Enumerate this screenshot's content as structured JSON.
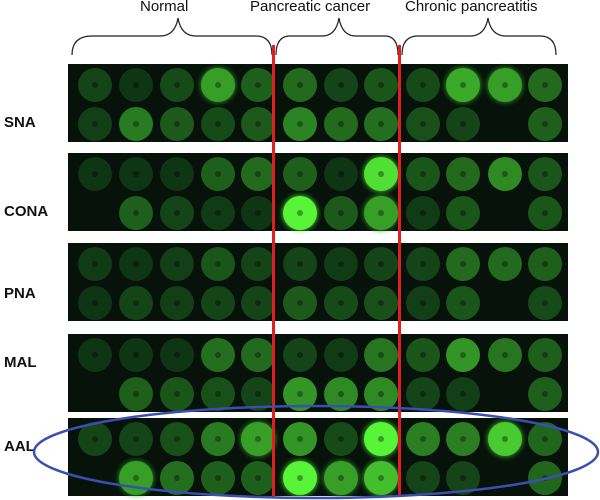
{
  "groups": [
    {
      "label": "Normal"
    },
    {
      "label": "Pancreatic cancer"
    },
    {
      "label": "Chronic pancreatitis"
    }
  ],
  "panels": [
    {
      "label": "SNA",
      "rows": [
        [
          0.12,
          0.05,
          0.15,
          0.55,
          0.25,
          0.3,
          0.12,
          0.2,
          0.15,
          0.6,
          0.55,
          0.3
        ],
        [
          0.1,
          0.38,
          0.22,
          0.15,
          0.22,
          0.42,
          0.3,
          0.32,
          0.18,
          0.12,
          0,
          0.25
        ]
      ]
    },
    {
      "label": "CONA",
      "rows": [
        [
          0.05,
          0.05,
          0.05,
          0.25,
          0.3,
          0.25,
          0.05,
          0.85,
          0.2,
          0.3,
          0.45,
          0.2
        ],
        [
          0,
          0.25,
          0.12,
          0.08,
          0.05,
          0.95,
          0.22,
          0.55,
          0.08,
          0.2,
          0,
          0.2
        ]
      ]
    },
    {
      "label": "PNA",
      "rows": [
        [
          0.08,
          0.05,
          0.1,
          0.2,
          0.12,
          0.12,
          0.08,
          0.12,
          0.12,
          0.3,
          0.3,
          0.25
        ],
        [
          0.05,
          0.12,
          0.1,
          0.12,
          0.12,
          0.22,
          0.15,
          0.18,
          0.1,
          0.2,
          0,
          0.15
        ]
      ]
    },
    {
      "label": "MAL",
      "rows": [
        [
          0.05,
          0.05,
          0.05,
          0.32,
          0.3,
          0.12,
          0.08,
          0.35,
          0.2,
          0.5,
          0.35,
          0.25
        ],
        [
          0,
          0.25,
          0.2,
          0.18,
          0.12,
          0.5,
          0.45,
          0.45,
          0.12,
          0.1,
          0,
          0.25
        ]
      ]
    },
    {
      "label": "AAL",
      "rows": [
        [
          0.12,
          0.12,
          0.18,
          0.38,
          0.55,
          0.5,
          0.15,
          0.95,
          0.4,
          0.4,
          0.75,
          0.28
        ],
        [
          0,
          0.55,
          0.32,
          0.25,
          0.25,
          0.95,
          0.55,
          0.7,
          0.12,
          0.12,
          0,
          0.28
        ]
      ]
    }
  ],
  "colors": {
    "background": "#ffffff",
    "panel": "#06120a",
    "spot_dim": "#0a2a12",
    "spot_bright": "#5cff3a",
    "divider": "#e02020",
    "highlight_ellipse": "#3a4fb0",
    "brace": "#222222"
  }
}
